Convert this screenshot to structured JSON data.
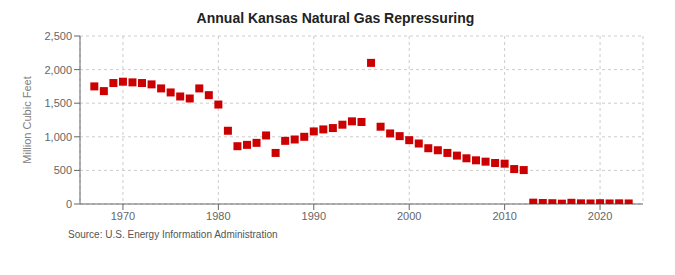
{
  "chart_data": {
    "type": "scatter",
    "title": "Annual Kansas Natural Gas Repressuring",
    "ylabel": "Million Cubic Feet",
    "annotations": [
      "Source: U.S. Energy Information Administration"
    ],
    "x": [
      1967,
      1968,
      1969,
      1970,
      1971,
      1972,
      1973,
      1974,
      1975,
      1976,
      1977,
      1978,
      1979,
      1980,
      1981,
      1982,
      1983,
      1984,
      1985,
      1986,
      1987,
      1988,
      1989,
      1990,
      1991,
      1992,
      1993,
      1994,
      1995,
      1996,
      1997,
      1998,
      1999,
      2000,
      2001,
      2002,
      2003,
      2004,
      2005,
      2006,
      2007,
      2008,
      2009,
      2010,
      2011,
      2012,
      2013,
      2014,
      2015,
      2016,
      2017,
      2018,
      2019,
      2020,
      2021,
      2022,
      2023
    ],
    "values": [
      1750,
      1680,
      1800,
      1820,
      1810,
      1800,
      1780,
      1720,
      1660,
      1600,
      1570,
      1720,
      1620,
      1480,
      1090,
      860,
      880,
      910,
      1020,
      760,
      940,
      960,
      1000,
      1080,
      1110,
      1130,
      1180,
      1230,
      1220,
      2100,
      1150,
      1050,
      1010,
      950,
      900,
      830,
      800,
      760,
      720,
      680,
      650,
      630,
      610,
      600,
      520,
      505,
      20,
      15,
      12,
      5,
      18,
      10,
      8,
      12,
      8,
      10,
      8
    ],
    "color": "#cc0000",
    "marker": "square",
    "xlim": [
      1965.5,
      2024.5
    ],
    "xticks": [
      1970,
      1980,
      1990,
      2000,
      2010,
      2020
    ],
    "ylim": [
      0,
      2500
    ],
    "yticks": [
      0,
      500,
      {
        "value": 1000,
        "label": "1,000"
      },
      {
        "value": 1500,
        "label": "1,500"
      },
      {
        "value": 2000,
        "label": "2,000"
      },
      {
        "value": 2500,
        "label": "2,500"
      }
    ],
    "grid": true
  }
}
